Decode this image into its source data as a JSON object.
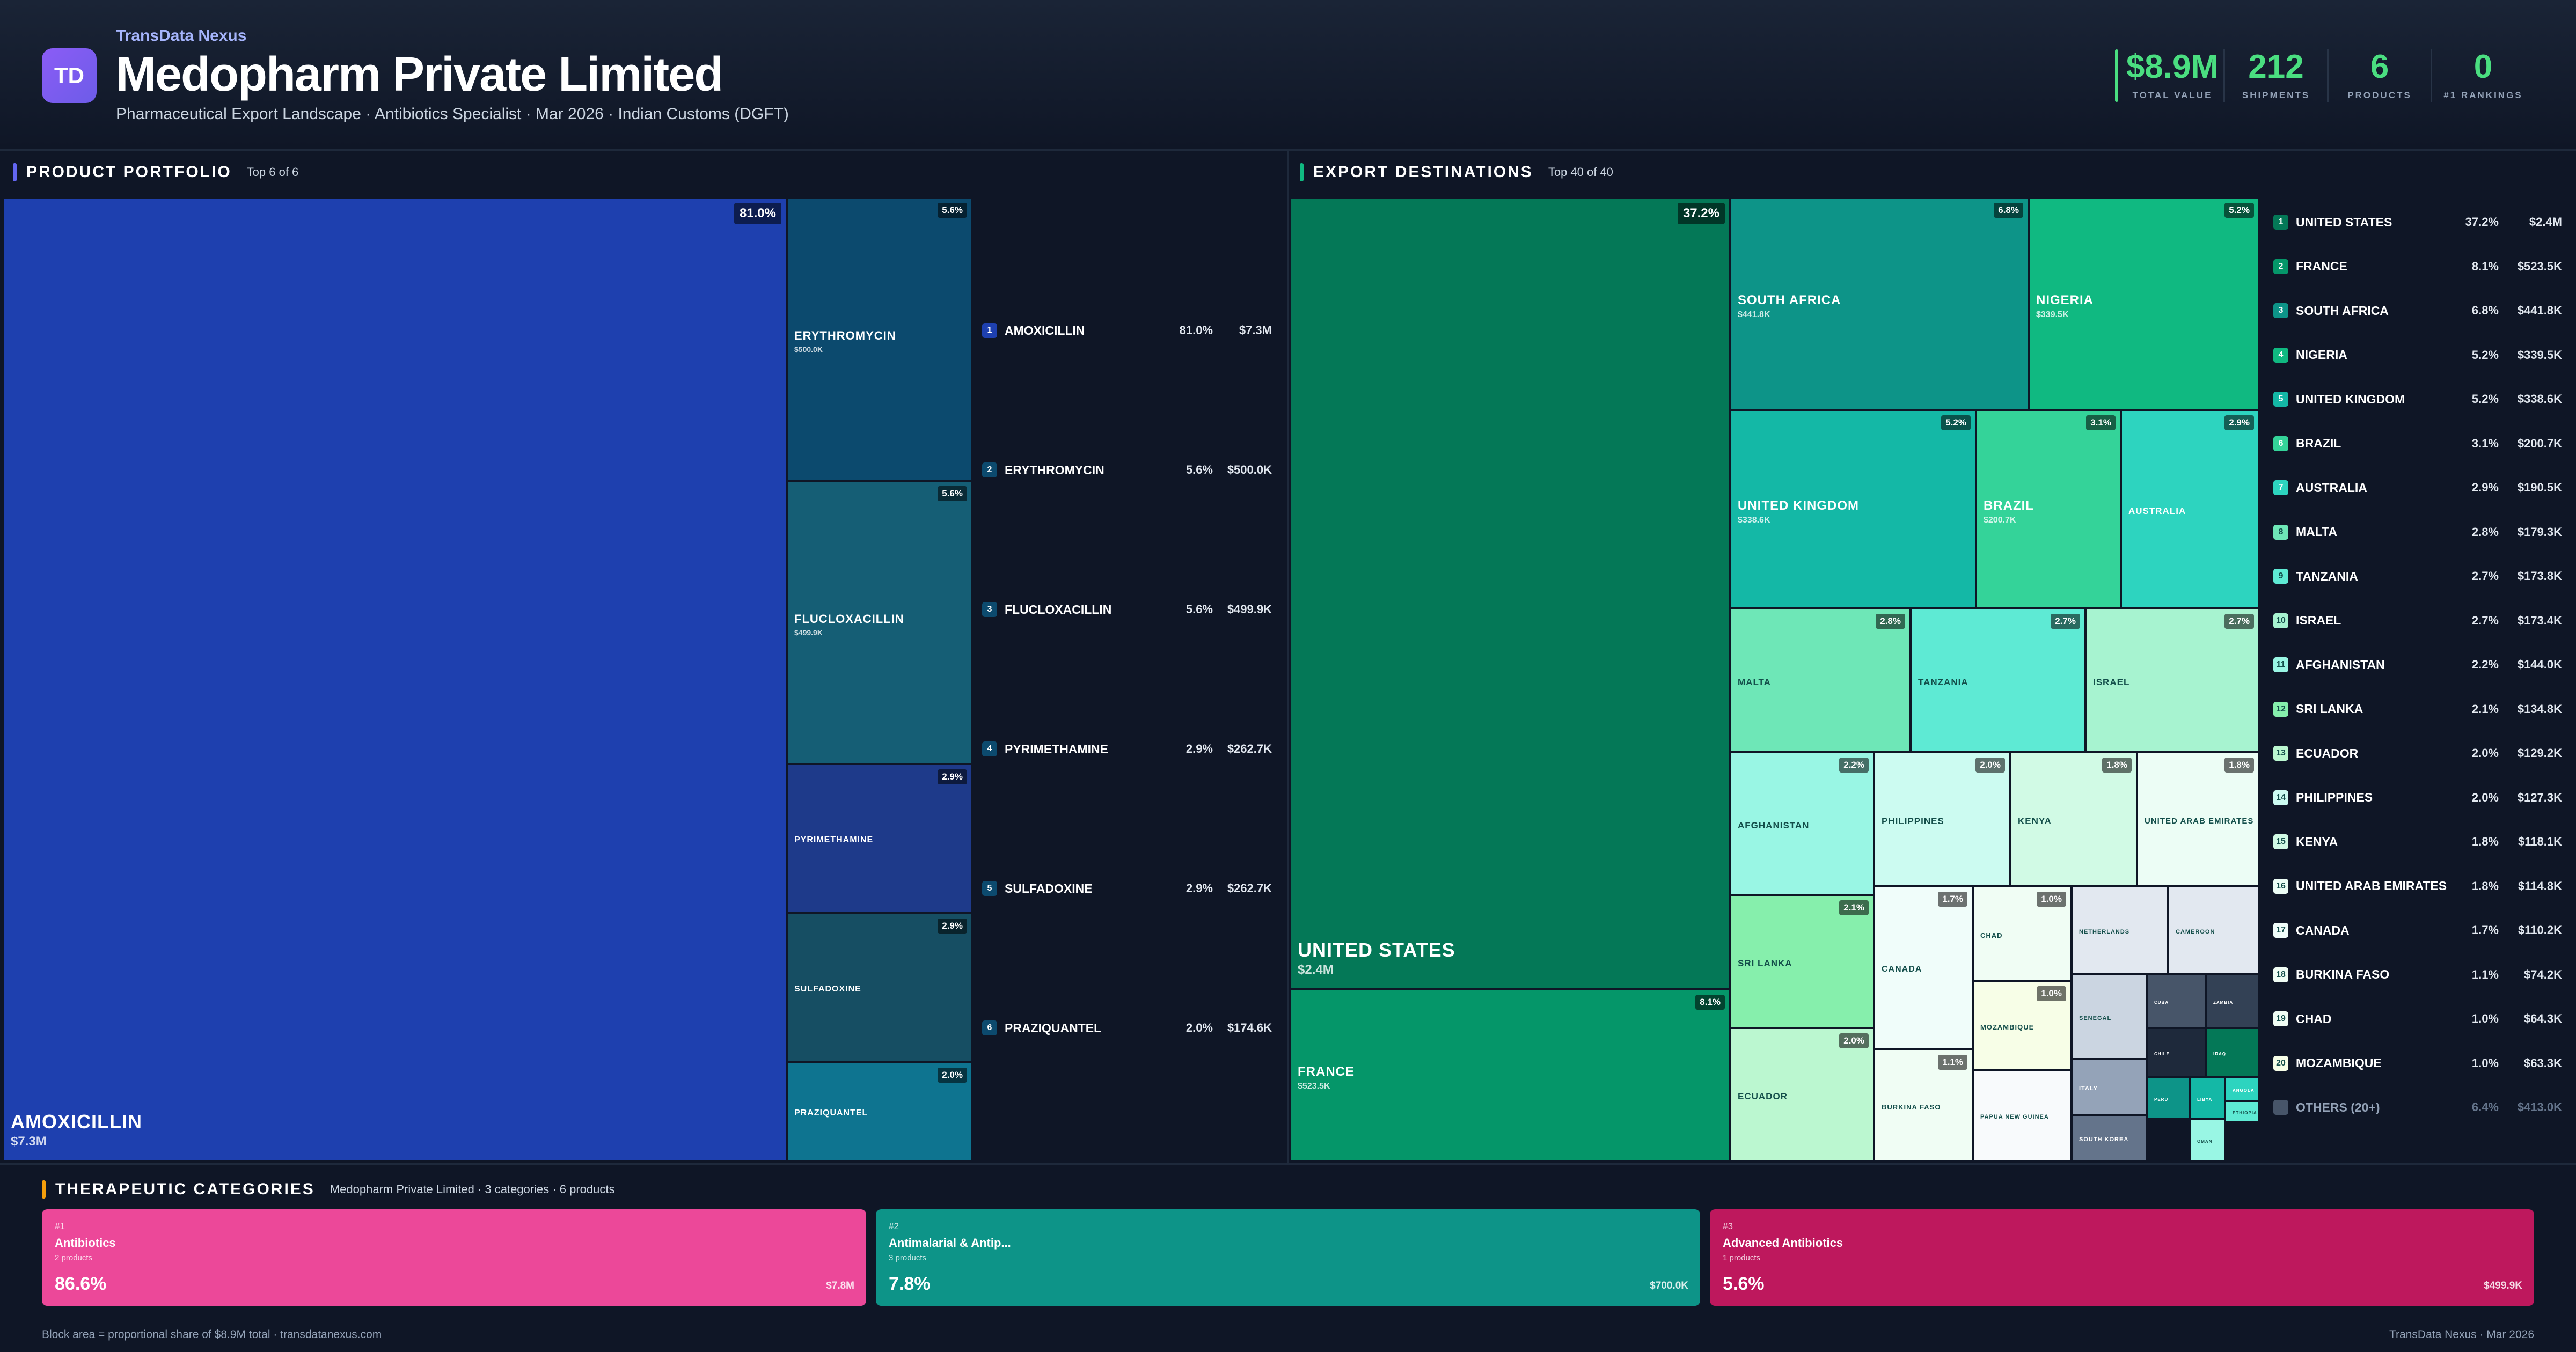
{
  "header": {
    "logo_text": "TD",
    "brand": "TransData Nexus",
    "title": "Medopharm Private Limited",
    "subtitle": "Pharmaceutical Export Landscape · Antibiotics Specialist · Mar 2026 · Indian Customs (DGFT)",
    "kpis": [
      {
        "value": "$8.9M",
        "label": "TOTAL VALUE"
      },
      {
        "value": "212",
        "label": "SHIPMENTS"
      },
      {
        "value": "6",
        "label": "PRODUCTS"
      },
      {
        "value": "0",
        "label": "#1 RANKINGS"
      }
    ],
    "accent_color": "#4ade80"
  },
  "products": {
    "title": "PRODUCT PORTFOLIO",
    "subtitle": "Top 6 of 6",
    "accent_color": "#6366f1",
    "items": [
      {
        "rank": "1",
        "name": "AMOXICILLIN",
        "pct": "81.0%",
        "value": "$7.3M",
        "color": "#1e40af"
      },
      {
        "rank": "2",
        "name": "ERYTHROMYCIN",
        "pct": "5.6%",
        "value": "$500.0K",
        "color": "#0c4a6e"
      },
      {
        "rank": "3",
        "name": "FLUCLOXACILLIN",
        "pct": "5.6%",
        "value": "$499.9K",
        "color": "#155e75"
      },
      {
        "rank": "4",
        "name": "PYRIMETHAMINE",
        "pct": "2.9%",
        "value": "$262.7K",
        "color": "#1e3a8a"
      },
      {
        "rank": "5",
        "name": "SULFADOXINE",
        "pct": "2.9%",
        "value": "$262.7K",
        "color": "#164e63"
      },
      {
        "rank": "6",
        "name": "PRAZIQUANTEL",
        "pct": "2.0%",
        "value": "$174.6K",
        "color": "#0e7490"
      }
    ]
  },
  "destinations": {
    "title": "EXPORT DESTINATIONS",
    "subtitle": "Top 40 of 40",
    "accent_color": "#10b981",
    "items": [
      {
        "rank": "1",
        "name": "UNITED STATES",
        "pct": "37.2%",
        "value": "$2.4M",
        "color": "#047857"
      },
      {
        "rank": "2",
        "name": "FRANCE",
        "pct": "8.1%",
        "value": "$523.5K",
        "color": "#059669"
      },
      {
        "rank": "3",
        "name": "SOUTH AFRICA",
        "pct": "6.8%",
        "value": "$441.8K",
        "color": "#0d9488"
      },
      {
        "rank": "4",
        "name": "NIGERIA",
        "pct": "5.2%",
        "value": "$339.5K",
        "color": "#10b981"
      },
      {
        "rank": "5",
        "name": "UNITED KINGDOM",
        "pct": "5.2%",
        "value": "$338.6K",
        "color": "#14b8a6"
      },
      {
        "rank": "6",
        "name": "BRAZIL",
        "pct": "3.1%",
        "value": "$200.7K",
        "color": "#34d399"
      },
      {
        "rank": "7",
        "name": "AUSTRALIA",
        "pct": "2.9%",
        "value": "$190.5K",
        "color": "#2dd4bf"
      },
      {
        "rank": "8",
        "name": "MALTA",
        "pct": "2.8%",
        "value": "$179.3K",
        "color": "#6ee7b7"
      },
      {
        "rank": "9",
        "name": "TANZANIA",
        "pct": "2.7%",
        "value": "$173.8K",
        "color": "#5eead4"
      },
      {
        "rank": "10",
        "name": "ISRAEL",
        "pct": "2.7%",
        "value": "$173.4K",
        "color": "#a7f3d0"
      },
      {
        "rank": "11",
        "name": "AFGHANISTAN",
        "pct": "2.2%",
        "value": "$144.0K",
        "color": "#99f6e4"
      },
      {
        "rank": "12",
        "name": "SRI LANKA",
        "pct": "2.1%",
        "value": "$134.8K",
        "color": "#86efac"
      },
      {
        "rank": "13",
        "name": "ECUADOR",
        "pct": "2.0%",
        "value": "$129.2K",
        "color": "#bbf7d0"
      },
      {
        "rank": "14",
        "name": "PHILIPPINES",
        "pct": "2.0%",
        "value": "$127.3K",
        "color": "#ccfbf1"
      },
      {
        "rank": "15",
        "name": "KENYA",
        "pct": "1.8%",
        "value": "$118.1K",
        "color": "#d1fae5"
      },
      {
        "rank": "16",
        "name": "UNITED ARAB EMIRATES",
        "pct": "1.8%",
        "value": "$114.8K",
        "color": "#ecfdf5"
      },
      {
        "rank": "17",
        "name": "CANADA",
        "pct": "1.7%",
        "value": "$110.2K",
        "color": "#f0fdfa"
      },
      {
        "rank": "18",
        "name": "BURKINA FASO",
        "pct": "1.1%",
        "value": "$74.2K",
        "color": "#f0fdf4"
      },
      {
        "rank": "19",
        "name": "CHAD",
        "pct": "1.0%",
        "value": "$64.3K",
        "color": "#f0fdf4"
      },
      {
        "rank": "20",
        "name": "MOZAMBIQUE",
        "pct": "1.0%",
        "value": "$63.3K",
        "color": "#f7fee7"
      }
    ],
    "others": {
      "name": "OTHERS (20+)",
      "pct": "6.4%",
      "value": "$413.0K"
    },
    "small_tiles": [
      "NETHERLANDS",
      "CAMEROON",
      "SENEGAL",
      "PAPUA NEW GUINEA",
      "ITALY",
      "SOUTH KOREA",
      "CUBA",
      "ZAMBIA",
      "CHILE",
      "IRAQ",
      "PERU",
      "LIBYA",
      "ANGOLA",
      "ETHIOPIA",
      "OMAN"
    ]
  },
  "categories": {
    "title": "THERAPEUTIC CATEGORIES",
    "subtitle": "Medopharm Private Limited · 3 categories · 6 products",
    "accent_color": "#f59e0b",
    "items": [
      {
        "rank": "#1",
        "name": "Antibiotics",
        "count": "2 products",
        "pct": "86.6%",
        "value": "$7.8M",
        "color": "#ec4899"
      },
      {
        "rank": "#2",
        "name": "Antimalarial & Antip...",
        "count": "3 products",
        "pct": "7.8%",
        "value": "$700.0K",
        "color": "#0d9488"
      },
      {
        "rank": "#3",
        "name": "Advanced Antibiotics",
        "count": "1 products",
        "pct": "5.6%",
        "value": "$499.9K",
        "color": "#be185d"
      }
    ]
  },
  "footer": {
    "left": "Block area = proportional share of $8.9M total · transdatanexus.com",
    "right": "TransData Nexus · Mar 2026"
  }
}
